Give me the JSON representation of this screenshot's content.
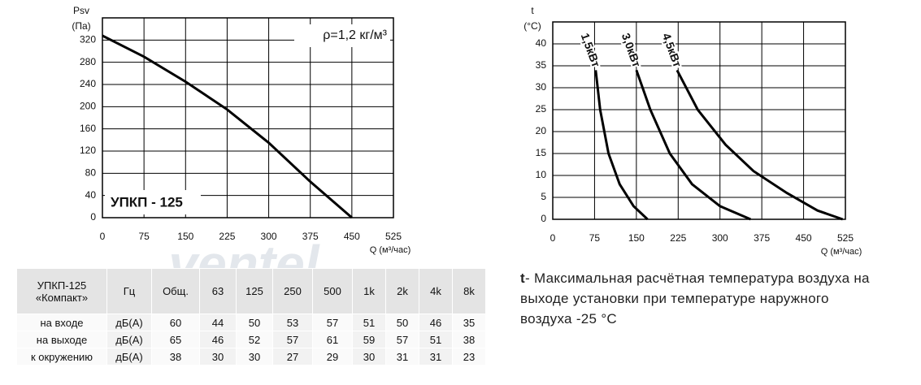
{
  "chart_data": [
    {
      "type": "line",
      "y_label": "Psv",
      "y_unit": "(Па)",
      "x_label": "Q (м³/час)",
      "annotations": [
        "ρ=1,2 кг/м³",
        "УПКП - 125"
      ],
      "xlim": [
        0,
        525
      ],
      "xticks": [
        0,
        75,
        150,
        225,
        300,
        375,
        450,
        525
      ],
      "ylim": [
        0,
        360
      ],
      "yticks": [
        0,
        40,
        80,
        120,
        160,
        200,
        240,
        280,
        320
      ],
      "grid": true,
      "series": [
        {
          "color": "#000000",
          "x": [
            0,
            75,
            150,
            225,
            300,
            375,
            450
          ],
          "values": [
            328,
            290,
            245,
            195,
            135,
            65,
            0
          ]
        }
      ]
    },
    {
      "type": "line",
      "y_label": "t",
      "y_unit": "(°С)",
      "x_label": "Q (м³/час)",
      "xlim": [
        0,
        525
      ],
      "xticks": [
        0,
        75,
        150,
        225,
        300,
        375,
        450,
        525
      ],
      "ylim": [
        0,
        45
      ],
      "yticks": [
        0,
        5,
        10,
        15,
        20,
        25,
        30,
        35,
        40
      ],
      "grid": true,
      "series": [
        {
          "name": "1,5кВт",
          "color": "#000000",
          "x": [
            77,
            85,
            100,
            120,
            145,
            170
          ],
          "values": [
            34,
            25,
            15,
            8,
            3,
            0
          ]
        },
        {
          "name": "3,0кВт",
          "color": "#000000",
          "x": [
            150,
            175,
            210,
            250,
            300,
            355
          ],
          "values": [
            34,
            25,
            15,
            8,
            3,
            0
          ]
        },
        {
          "name": "4,5кВт",
          "color": "#000000",
          "x": [
            223,
            260,
            310,
            360,
            420,
            475,
            520
          ],
          "values": [
            34,
            25,
            17,
            11,
            6,
            2,
            0
          ]
        }
      ]
    }
  ],
  "watermark": "ventel",
  "table": {
    "header": [
      "УПКП-125 «Компакт»",
      "Гц",
      "Общ.",
      "63",
      "125",
      "250",
      "500",
      "1k",
      "2k",
      "4k",
      "8k"
    ],
    "rows": [
      [
        "на входе",
        "дБ(А)",
        60,
        44,
        50,
        53,
        57,
        51,
        50,
        46,
        35
      ],
      [
        "на выходе",
        "дБ(А)",
        65,
        46,
        52,
        57,
        61,
        59,
        57,
        51,
        38
      ],
      [
        "к окружению",
        "дБ(А)",
        38,
        30,
        30,
        27,
        29,
        30,
        31,
        31,
        23
      ]
    ]
  },
  "caption": {
    "term": "t",
    "text": "- Максимальная расчётная температура воздуха на выходе установки при температуре наружного воздуха -25 °С"
  }
}
